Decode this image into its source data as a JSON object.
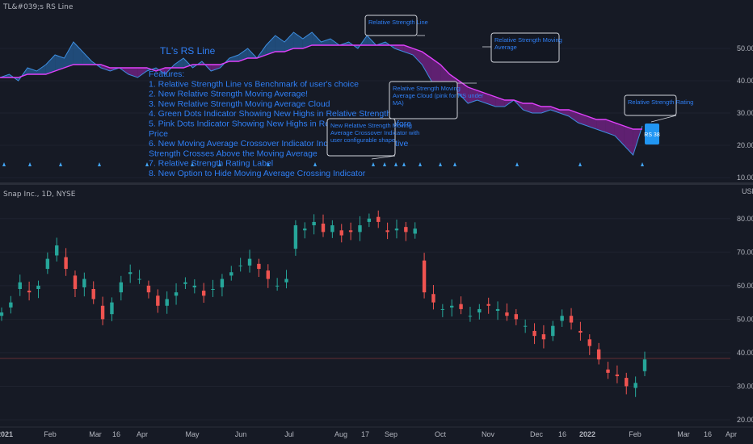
{
  "upper_pane": {
    "title": "TL&#039;s RS Line",
    "axis_unit": "",
    "y_ticks": [
      50.0,
      40.0,
      30.0,
      20.0,
      10.0
    ],
    "features_title": "TL's RS Line",
    "features_lines": [
      "Features:",
      "1. Relative Strength Line vs Benchmark of user's choice",
      "2. New Relative Strength Moving Average!",
      "3. New Relative Strength Moving Average Cloud",
      "4. Green Dots Indicator Showing New Highs in Relative Strength",
      "5. Pink Dots Indicator Showing New Highs in Relative Strength Before",
      "Price",
      "6. New Moving Average Crossover Indicator Indicating when Relative",
      "Strength Crosses Above the Moving Average",
      "7.  Relative Strength Rating Label",
      "8. New Option to Hide Moving Average Crossing Indicator"
    ],
    "callouts": [
      {
        "id": "rs-line",
        "lines": [
          "Relative Strength Line"
        ]
      },
      {
        "id": "rs-ma",
        "lines": [
          "Relative Strength Moving",
          "Average"
        ]
      },
      {
        "id": "rs-cloud",
        "lines": [
          "Relative Strength Moving",
          "Average Cloud (pink for RS under",
          "MA)"
        ]
      },
      {
        "id": "crossover",
        "lines": [
          "New Relative Strength Moving",
          "Average Crossover Indicator with",
          "user configurable shape"
        ]
      },
      {
        "id": "rs-rating",
        "lines": [
          "Relative Strength Rating"
        ]
      }
    ],
    "rs_badge": "RS 38"
  },
  "lower_pane": {
    "title": "Snap Inc., 1D, NYSE",
    "axis_unit": "USD",
    "y_ticks": [
      80.0,
      70.0,
      60.0,
      50.0,
      40.0,
      30.0,
      20.0
    ]
  },
  "x_axis": {
    "labels": [
      "2021",
      "Feb",
      "Mar",
      "16",
      "Apr",
      "May",
      "Jun",
      "Jul",
      "Aug",
      "17",
      "Sep",
      "Oct",
      "Nov",
      "Dec",
      "16",
      "2022",
      "Feb",
      "Mar",
      "16",
      "Apr"
    ]
  },
  "colors": {
    "background": "#161a25",
    "rs_line_fill": "#2a75c0",
    "rs_cloud_fill": "#9c27b0",
    "ma_line": "#e040fb",
    "up_candle": "#26a69a",
    "down_candle": "#ef5350",
    "text_blue": "#2f7ff5",
    "badge": "#2196f3"
  },
  "chart_data": [
    {
      "type": "line",
      "title": "TL&#039;s RS Line",
      "series": [
        {
          "name": "Relative Strength Line",
          "values": [
            41,
            42,
            40,
            44,
            43,
            45,
            48,
            47,
            52,
            49,
            46,
            44,
            43,
            44,
            42,
            41,
            43,
            44,
            42,
            45,
            47,
            44,
            46,
            43,
            44,
            47,
            48,
            50,
            47,
            51,
            54,
            52,
            55,
            53,
            55,
            52,
            53,
            51,
            52,
            50,
            54,
            51,
            52,
            50,
            49,
            48,
            45,
            40,
            36,
            35,
            36,
            33,
            34,
            33,
            32,
            32,
            34,
            31,
            30,
            30,
            31,
            30,
            29,
            27,
            26,
            25,
            24,
            23,
            20,
            17,
            26
          ]
        },
        {
          "name": "Relative Strength Moving Average",
          "values": [
            41,
            41,
            41,
            42,
            42,
            42,
            43,
            44,
            45,
            45,
            45,
            45,
            44,
            44,
            44,
            44,
            44,
            43,
            44,
            44,
            44,
            45,
            45,
            45,
            45,
            46,
            46,
            47,
            47,
            48,
            49,
            49,
            50,
            50,
            51,
            51,
            51,
            51,
            51,
            51,
            51,
            51,
            51,
            51,
            51,
            50,
            49,
            47,
            45,
            42,
            40,
            38,
            37,
            36,
            35,
            34,
            34,
            33,
            33,
            32,
            32,
            31,
            31,
            30,
            29,
            28,
            28,
            27,
            26,
            25,
            25
          ]
        }
      ],
      "ylim": [
        10,
        60
      ]
    },
    {
      "type": "bar",
      "title": "Snap Inc., 1D, NYSE",
      "ylabel": "USD",
      "series": [
        {
          "name": "close",
          "values": [
            52,
            55,
            61,
            58,
            60,
            68,
            72,
            65,
            59,
            62,
            56,
            50,
            55,
            61,
            64,
            62,
            58,
            54,
            56,
            58,
            61,
            60,
            57,
            59,
            62,
            64,
            66,
            68,
            65,
            62,
            60,
            62,
            78,
            77,
            79,
            76,
            78,
            75,
            76,
            78,
            80,
            79,
            76,
            77,
            76,
            77,
            58,
            55,
            53,
            54,
            53,
            51,
            53,
            54,
            53,
            51,
            50,
            48,
            45,
            44,
            48,
            51,
            49,
            46,
            42,
            38,
            34,
            33,
            30,
            31,
            38
          ]
        }
      ],
      "ylim": [
        20,
        85
      ]
    }
  ]
}
